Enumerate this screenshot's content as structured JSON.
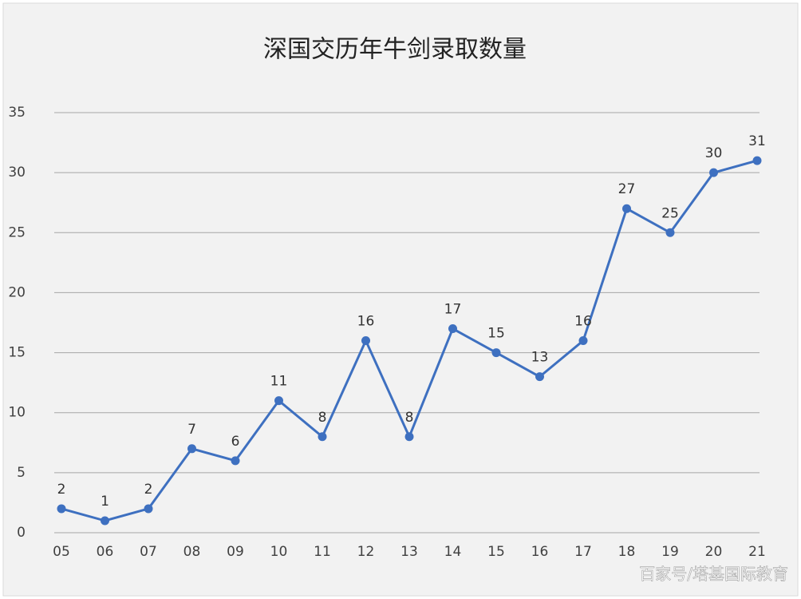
{
  "chart_data": {
    "type": "line",
    "title": "深国交历年牛剑录取数量",
    "categories": [
      "05",
      "06",
      "07",
      "08",
      "09",
      "10",
      "11",
      "12",
      "13",
      "14",
      "15",
      "16",
      "17",
      "18",
      "19",
      "20",
      "21"
    ],
    "series": [
      {
        "name": "录取数量",
        "color": "#3e70c0",
        "values": [
          2,
          1,
          2,
          7,
          6,
          11,
          8,
          16,
          8,
          17,
          15,
          13,
          16,
          27,
          25,
          30,
          31
        ]
      }
    ],
    "ylim": [
      0,
      35
    ],
    "yticks": [
      0,
      5,
      10,
      15,
      20,
      25,
      30,
      35
    ],
    "grid": true,
    "watermark": "百家号/塔基国际教育"
  }
}
